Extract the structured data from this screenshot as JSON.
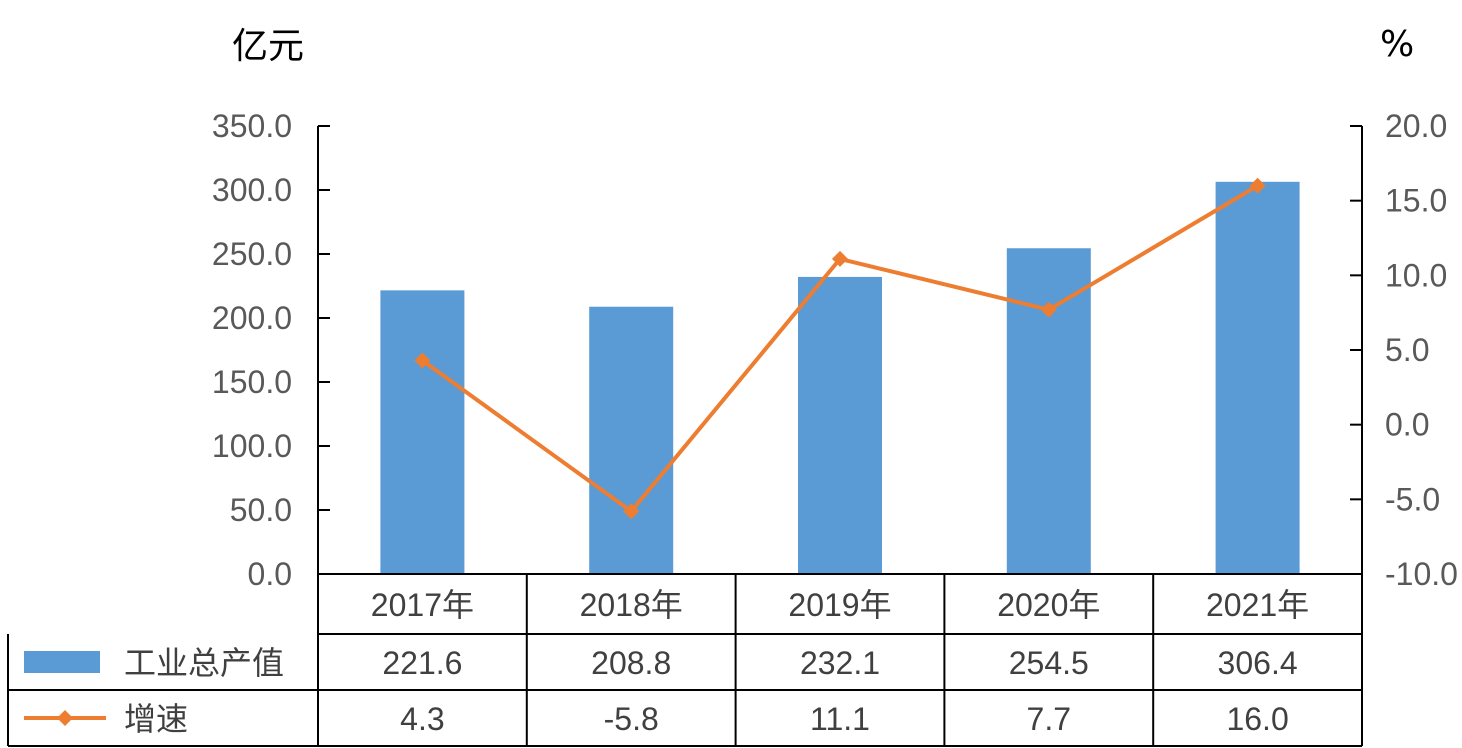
{
  "chart_data": {
    "type": "bar",
    "categories": [
      "2017年",
      "2018年",
      "2019年",
      "2020年",
      "2021年"
    ],
    "series": [
      {
        "name": "工业总产值",
        "type": "bar",
        "axis": "left",
        "values": [
          221.6,
          208.8,
          232.1,
          254.5,
          306.4
        ],
        "color": "#5B9BD5"
      },
      {
        "name": "增速",
        "type": "line",
        "axis": "right",
        "values": [
          4.3,
          -5.8,
          11.1,
          7.7,
          16.0
        ],
        "color": "#ED7D31"
      }
    ],
    "left_axis": {
      "unit": "亿元",
      "ylim": [
        0,
        350
      ],
      "ticks": [
        "0.0",
        "50.0",
        "100.0",
        "150.0",
        "200.0",
        "250.0",
        "300.0",
        "350.0"
      ]
    },
    "right_axis": {
      "unit": "%",
      "ylim": [
        -10,
        20
      ],
      "ticks": [
        "-10.0",
        "-5.0",
        "0.0",
        "5.0",
        "10.0",
        "15.0",
        "20.0"
      ]
    },
    "data_table": {
      "rows": [
        {
          "label": "工业总产值",
          "cells": [
            "221.6",
            "208.8",
            "232.1",
            "254.5",
            "306.4"
          ]
        },
        {
          "label": "增速",
          "cells": [
            "4.3",
            "-5.8",
            "11.1",
            "7.7",
            "16.0"
          ]
        }
      ]
    },
    "grid": false,
    "legend": "data-table"
  }
}
